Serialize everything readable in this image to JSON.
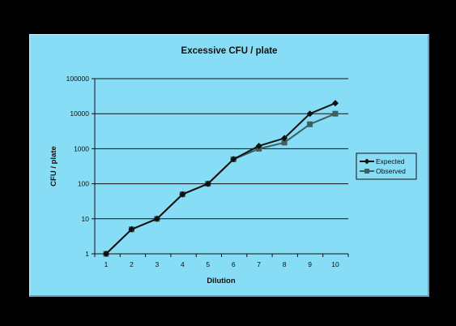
{
  "colors": {
    "background": "#000000",
    "panel": "#87DDF5",
    "plot_area": "#87DDF5",
    "gridline": "#111111",
    "expected": "#111111",
    "observed": "#3E5F5F"
  },
  "chart_data": {
    "type": "line",
    "title": "Excessive CFU / plate",
    "xlabel": "Dilution",
    "ylabel": "CFU / plate",
    "x": [
      1,
      2,
      3,
      4,
      5,
      6,
      7,
      8,
      9,
      10
    ],
    "yscale": "log",
    "ylim": [
      1,
      100000
    ],
    "yticks": [
      1,
      10,
      100,
      1000,
      10000,
      100000
    ],
    "grid": "horizontal",
    "legend_position": "right",
    "series": [
      {
        "name": "Expected",
        "marker": "diamond",
        "values": [
          1,
          5,
          10,
          50,
          100,
          500,
          1200,
          2000,
          10000,
          20000
        ]
      },
      {
        "name": "Observed",
        "marker": "square",
        "values": [
          1,
          5,
          10,
          50,
          100,
          500,
          1000,
          1500,
          5000,
          10000
        ]
      }
    ]
  }
}
